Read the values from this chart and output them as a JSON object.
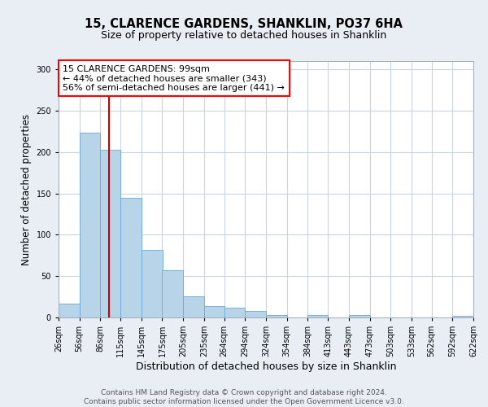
{
  "title": "15, CLARENCE GARDENS, SHANKLIN, PO37 6HA",
  "subtitle": "Size of property relative to detached houses in Shanklin",
  "xlabel": "Distribution of detached houses by size in Shanklin",
  "ylabel": "Number of detached properties",
  "bar_values": [
    17,
    223,
    203,
    145,
    82,
    57,
    26,
    14,
    12,
    8,
    3,
    0,
    3,
    0,
    3,
    0,
    0,
    0,
    0,
    2
  ],
  "bin_edges": [
    26,
    56,
    86,
    115,
    145,
    175,
    205,
    235,
    264,
    294,
    324,
    354,
    384,
    413,
    443,
    473,
    503,
    533,
    562,
    592,
    622
  ],
  "tick_labels": [
    "26sqm",
    "56sqm",
    "86sqm",
    "115sqm",
    "145sqm",
    "175sqm",
    "205sqm",
    "235sqm",
    "264sqm",
    "294sqm",
    "324sqm",
    "354sqm",
    "384sqm",
    "413sqm",
    "443sqm",
    "473sqm",
    "503sqm",
    "533sqm",
    "562sqm",
    "592sqm",
    "622sqm"
  ],
  "bar_color": "#b8d4e8",
  "bar_edge_color": "#6aaad4",
  "vline_x": 99,
  "vline_color": "#cc0000",
  "annotation_line1": "15 CLARENCE GARDENS: 99sqm",
  "annotation_line2": "← 44% of detached houses are smaller (343)",
  "annotation_line3": "56% of semi-detached houses are larger (441) →",
  "ylim": [
    0,
    310
  ],
  "yticks": [
    0,
    50,
    100,
    150,
    200,
    250,
    300
  ],
  "background_color": "#e8eef4",
  "plot_bg_color": "#ffffff",
  "grid_color": "#c8d4de",
  "footer_line1": "Contains HM Land Registry data © Crown copyright and database right 2024.",
  "footer_line2": "Contains public sector information licensed under the Open Government Licence v3.0.",
  "title_fontsize": 10.5,
  "subtitle_fontsize": 9,
  "xlabel_fontsize": 9,
  "ylabel_fontsize": 8.5,
  "tick_fontsize": 7,
  "footer_fontsize": 6.5,
  "annotation_fontsize": 8
}
